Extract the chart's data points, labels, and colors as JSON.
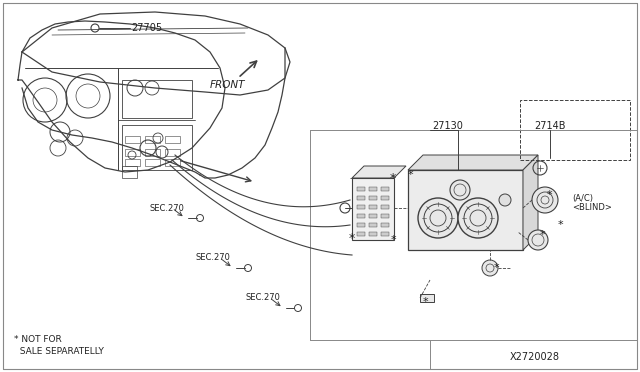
{
  "bg_color": "#ffffff",
  "line_color": "#404040",
  "text_color": "#222222",
  "gray_line": "#aaaaaa",
  "labels": {
    "part_27705": "27705",
    "part_27130": "27130",
    "part_2714B": "2714B",
    "part_ac_line1": "(A/C)",
    "part_ac_line2": "<BLIND>",
    "sec270": "SEC.270",
    "front": "FRONT",
    "not_for_sale_1": "* NOT FOR",
    "not_for_sale_2": "  SALE SEPARATELLY",
    "diagram_id": "X2720028"
  },
  "font_size_label": 7,
  "font_size_small": 6,
  "font_size_id": 7
}
